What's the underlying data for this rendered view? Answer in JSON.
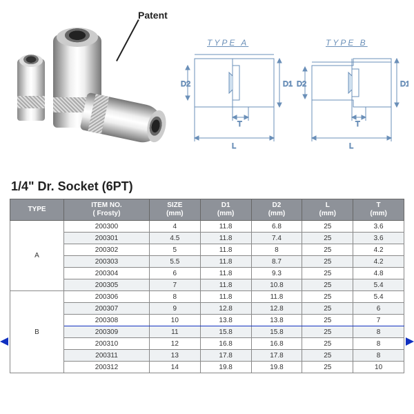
{
  "labels": {
    "patent": "Patent",
    "typeA": "TYPE  A",
    "typeB": "TYPE  B",
    "D1": "D1",
    "D2": "D2",
    "L": "L",
    "T": "T"
  },
  "title": "1/4\" Dr. Socket (6PT)",
  "table": {
    "header_bg": "#8e9299",
    "header_fg": "#ffffff",
    "border_color": "#888888",
    "alt_row_bg": "#eef1f3",
    "highlight_color": "#1030c0",
    "highlight_index": 8,
    "columns": [
      {
        "label_l1": "TYPE",
        "label_l2": ""
      },
      {
        "label_l1": "ITEM NO.",
        "label_l2": "( Frosty)"
      },
      {
        "label_l1": "SIZE",
        "label_l2": "(mm)"
      },
      {
        "label_l1": "D1",
        "label_l2": "(mm)"
      },
      {
        "label_l1": "D2",
        "label_l2": "(mm)"
      },
      {
        "label_l1": "L",
        "label_l2": "(mm)"
      },
      {
        "label_l1": "T",
        "label_l2": "(mm)"
      }
    ],
    "type_groups": [
      {
        "type": "A",
        "start": 0,
        "span": 6
      },
      {
        "type": "B",
        "start": 6,
        "span": 7
      }
    ],
    "rows": [
      {
        "item": "200300",
        "size": "4",
        "d1": "11.8",
        "d2": "6.8",
        "l": "25",
        "t": "3.6"
      },
      {
        "item": "200301",
        "size": "4.5",
        "d1": "11.8",
        "d2": "7.4",
        "l": "25",
        "t": "3.6"
      },
      {
        "item": "200302",
        "size": "5",
        "d1": "11.8",
        "d2": "8",
        "l": "25",
        "t": "4.2"
      },
      {
        "item": "200303",
        "size": "5.5",
        "d1": "11.8",
        "d2": "8.7",
        "l": "25",
        "t": "4.2"
      },
      {
        "item": "200304",
        "size": "6",
        "d1": "11.8",
        "d2": "9.3",
        "l": "25",
        "t": "4.8"
      },
      {
        "item": "200305",
        "size": "7",
        "d1": "11.8",
        "d2": "10.8",
        "l": "25",
        "t": "5.4"
      },
      {
        "item": "200306",
        "size": "8",
        "d1": "11.8",
        "d2": "11.8",
        "l": "25",
        "t": "5.4"
      },
      {
        "item": "200307",
        "size": "9",
        "d1": "12.8",
        "d2": "12.8",
        "l": "25",
        "t": "6"
      },
      {
        "item": "200308",
        "size": "10",
        "d1": "13.8",
        "d2": "13.8",
        "l": "25",
        "t": "7"
      },
      {
        "item": "200309",
        "size": "11",
        "d1": "15.8",
        "d2": "15.8",
        "l": "25",
        "t": "8"
      },
      {
        "item": "200310",
        "size": "12",
        "d1": "16.8",
        "d2": "16.8",
        "l": "25",
        "t": "8"
      },
      {
        "item": "200311",
        "size": "13",
        "d1": "17.8",
        "d2": "17.8",
        "l": "25",
        "t": "8"
      },
      {
        "item": "200312",
        "size": "14",
        "d1": "19.8",
        "d2": "19.8",
        "l": "25",
        "t": "10"
      }
    ]
  },
  "diagram": {
    "stroke": "#6a8fb8",
    "stroke_width": 1
  }
}
